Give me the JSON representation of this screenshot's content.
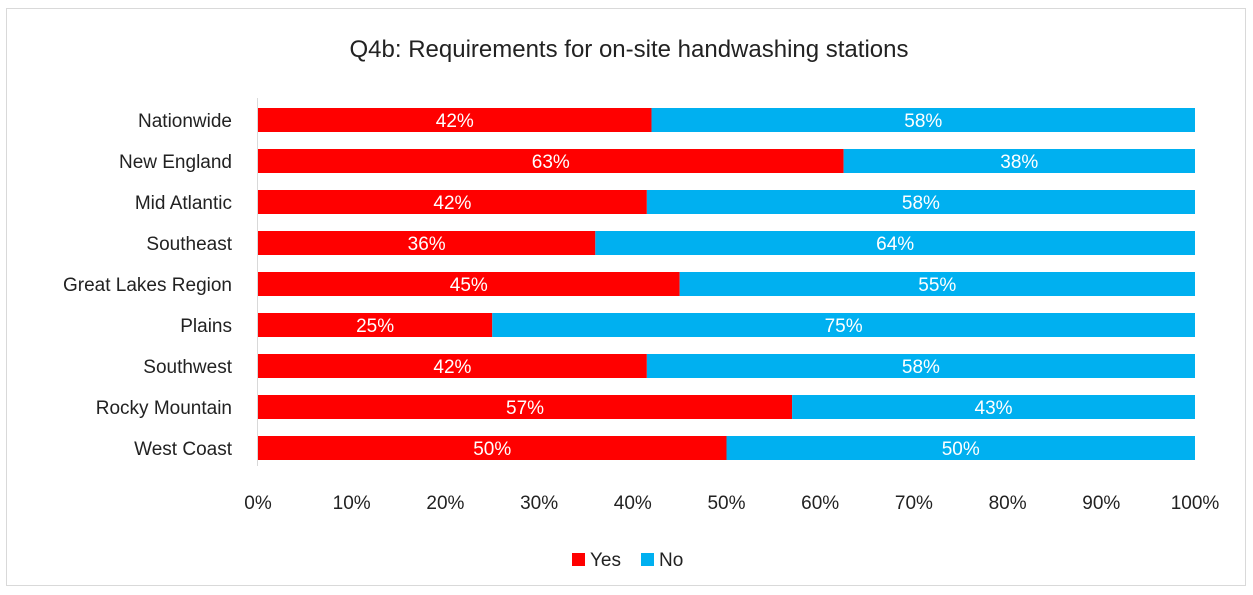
{
  "chart_data": {
    "type": "bar",
    "orientation": "horizontal",
    "stacked": true,
    "title": "Q4b: Requirements for on-site handwashing stations",
    "categories": [
      "Nationwide",
      "New England",
      "Mid Atlantic",
      "Southeast",
      "Great Lakes Region",
      "Plains",
      "Southwest",
      "Rocky Mountain",
      "West Coast"
    ],
    "series": [
      {
        "name": "Yes",
        "color": "#ff0000",
        "values": [
          42,
          62.5,
          41.5,
          36,
          45,
          25,
          41.5,
          57,
          50
        ],
        "labels": [
          "42%",
          "63%",
          "42%",
          "36%",
          "45%",
          "25%",
          "42%",
          "57%",
          "50%"
        ]
      },
      {
        "name": "No",
        "color": "#00b0f0",
        "values": [
          58,
          37.5,
          58.5,
          64,
          55,
          75,
          58.5,
          43,
          50
        ],
        "labels": [
          "58%",
          "38%",
          "58%",
          "64%",
          "55%",
          "75%",
          "58%",
          "43%",
          "50%"
        ]
      }
    ],
    "xlim": [
      0,
      100
    ],
    "xticks": [
      "0%",
      "10%",
      "20%",
      "30%",
      "40%",
      "50%",
      "60%",
      "70%",
      "80%",
      "90%",
      "100%"
    ],
    "grid": false,
    "legend_position": "bottom"
  }
}
